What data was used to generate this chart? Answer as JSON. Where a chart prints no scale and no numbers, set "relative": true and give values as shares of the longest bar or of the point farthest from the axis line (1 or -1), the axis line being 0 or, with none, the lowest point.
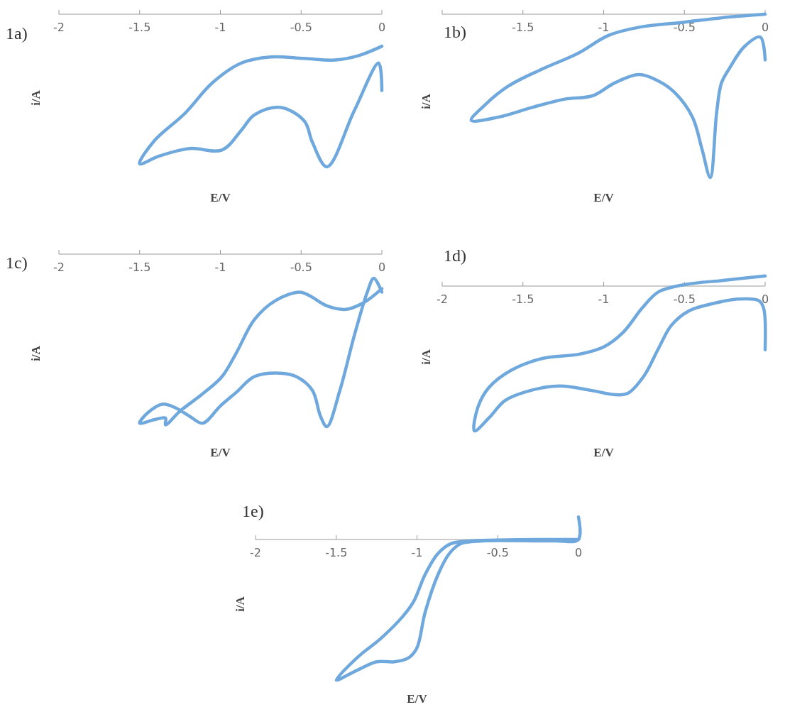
{
  "chart_data": [
    {
      "type": "line",
      "title": "1a)",
      "xlabel": "E/V",
      "ylabel": "i/A",
      "relative": true,
      "xlim": [
        -2,
        0
      ],
      "xticks": [
        -2,
        -1.5,
        -1,
        -0.5,
        0
      ],
      "color": "#6fa8dc",
      "x": [
        0,
        -0.02,
        -0.17,
        -0.34,
        -0.43,
        -0.48,
        -0.63,
        -0.79,
        -0.87,
        -0.99,
        -1.19,
        -1.38,
        -1.5,
        -1.41,
        -1.22,
        -1.05,
        -0.87,
        -0.69,
        -0.48,
        -0.29,
        -0.14,
        0
      ],
      "values": [
        -0.5,
        -0.32,
        -0.63,
        -1,
        -0.84,
        -0.7,
        -0.61,
        -0.66,
        -0.76,
        -0.89,
        -0.88,
        -0.93,
        -0.98,
        -0.83,
        -0.65,
        -0.45,
        -0.32,
        -0.28,
        -0.29,
        -0.3,
        -0.27,
        -0.21
      ]
    },
    {
      "type": "line",
      "title": "1b)",
      "xlabel": "E/V",
      "ylabel": "i/A",
      "relative": true,
      "xlim": [
        -2,
        0
      ],
      "xticks": [
        {
          "value": -2,
          "label": null
        },
        -1.5,
        -1,
        -0.5,
        0
      ],
      "color": "#6fa8dc",
      "x": [
        0,
        -0.03,
        -0.13,
        -0.22,
        -0.27,
        -0.3,
        -0.34,
        -0.39,
        -0.45,
        -0.56,
        -0.66,
        -0.78,
        -0.93,
        -1.07,
        -1.24,
        -1.44,
        -1.65,
        -1.82,
        -1.74,
        -1.59,
        -1.39,
        -1.16,
        -0.97,
        -0.78,
        -0.51,
        -0.25,
        0
      ],
      "values": [
        -0.28,
        -0.14,
        -0.2,
        -0.33,
        -0.42,
        -0.6,
        -1,
        -0.83,
        -0.63,
        -0.48,
        -0.41,
        -0.37,
        -0.42,
        -0.5,
        -0.52,
        -0.57,
        -0.63,
        -0.65,
        -0.56,
        -0.44,
        -0.34,
        -0.24,
        -0.13,
        -0.08,
        -0.05,
        -0.02,
        0
      ]
    },
    {
      "type": "line",
      "title": "1c)",
      "xlabel": "E/V",
      "ylabel": "i/A",
      "relative": true,
      "xlim": [
        -2,
        0
      ],
      "xticks": [
        -2,
        -1.5,
        -1,
        -0.5,
        0
      ],
      "color": "#6fa8dc",
      "x": [
        0,
        -0.05,
        -0.09,
        -0.17,
        -0.26,
        -0.34,
        -0.38,
        -0.43,
        -0.53,
        -0.63,
        -0.79,
        -0.9,
        -1,
        -1.11,
        -1.19,
        -1.28,
        -1.36,
        -1.45,
        -1.5,
        -1.41,
        -1.34,
        -1.34,
        -1.25,
        -1.11,
        -0.99,
        -0.9,
        -0.79,
        -0.66,
        -0.51,
        -0.45,
        -0.34,
        -0.22,
        -0.11,
        0
      ],
      "values": [
        -0.22,
        -0.14,
        -0.22,
        -0.47,
        -0.79,
        -1,
        -0.94,
        -0.79,
        -0.71,
        -0.69,
        -0.71,
        -0.8,
        -0.88,
        -0.98,
        -0.94,
        -0.89,
        -0.87,
        -0.92,
        -0.98,
        -0.96,
        -0.95,
        -0.99,
        -0.91,
        -0.81,
        -0.71,
        -0.57,
        -0.38,
        -0.27,
        -0.22,
        -0.24,
        -0.3,
        -0.32,
        -0.28,
        -0.2
      ]
    },
    {
      "type": "line",
      "title": "1d)",
      "xlabel": "E/V",
      "ylabel": "i/A",
      "relative": true,
      "xlim": [
        -2,
        0
      ],
      "xticks": [
        -2,
        -1.5,
        -1,
        -0.5,
        0
      ],
      "color": "#6fa8dc",
      "x": [
        0,
        -0.01,
        -0.04,
        -0.17,
        -0.32,
        -0.47,
        -0.58,
        -0.66,
        -0.75,
        -0.85,
        -0.93,
        -1.08,
        -1.27,
        -1.45,
        -1.61,
        -1.71,
        -1.8,
        -1.78,
        -1.71,
        -1.57,
        -1.38,
        -1.15,
        -1,
        -0.88,
        -0.76,
        -0.66,
        -0.5,
        -0.25,
        0
      ],
      "values": [
        -0.44,
        -0.15,
        -0.1,
        -0.09,
        -0.12,
        -0.17,
        -0.27,
        -0.43,
        -0.62,
        -0.74,
        -0.75,
        -0.72,
        -0.69,
        -0.72,
        -0.79,
        -0.91,
        -1,
        -0.84,
        -0.7,
        -0.58,
        -0.5,
        -0.47,
        -0.42,
        -0.32,
        -0.15,
        -0.04,
        0.01,
        0.04,
        0.07
      ]
    },
    {
      "type": "line",
      "title": "1e)",
      "xlabel": "E/V",
      "ylabel": "i/A",
      "relative": true,
      "xlim": [
        -2,
        0
      ],
      "xticks": [
        -2,
        -1.5,
        -1,
        -0.5,
        0
      ],
      "color": "#6fa8dc",
      "x": [
        0,
        0,
        -0.15,
        -0.59,
        -0.73,
        -0.8,
        -0.87,
        -0.95,
        -1,
        -1.05,
        -1.14,
        -1.25,
        -1.37,
        -1.5,
        -1.37,
        -1.22,
        -1.09,
        -1.02,
        -0.95,
        -0.87,
        -0.79,
        -0.66,
        0
      ],
      "values": [
        0.16,
        0,
        -0.01,
        -0.01,
        -0.03,
        -0.1,
        -0.25,
        -0.52,
        -0.77,
        -0.84,
        -0.87,
        -0.87,
        -0.93,
        -1,
        -0.84,
        -0.7,
        -0.55,
        -0.44,
        -0.25,
        -0.1,
        -0.03,
        -0.01,
        0
      ]
    }
  ]
}
